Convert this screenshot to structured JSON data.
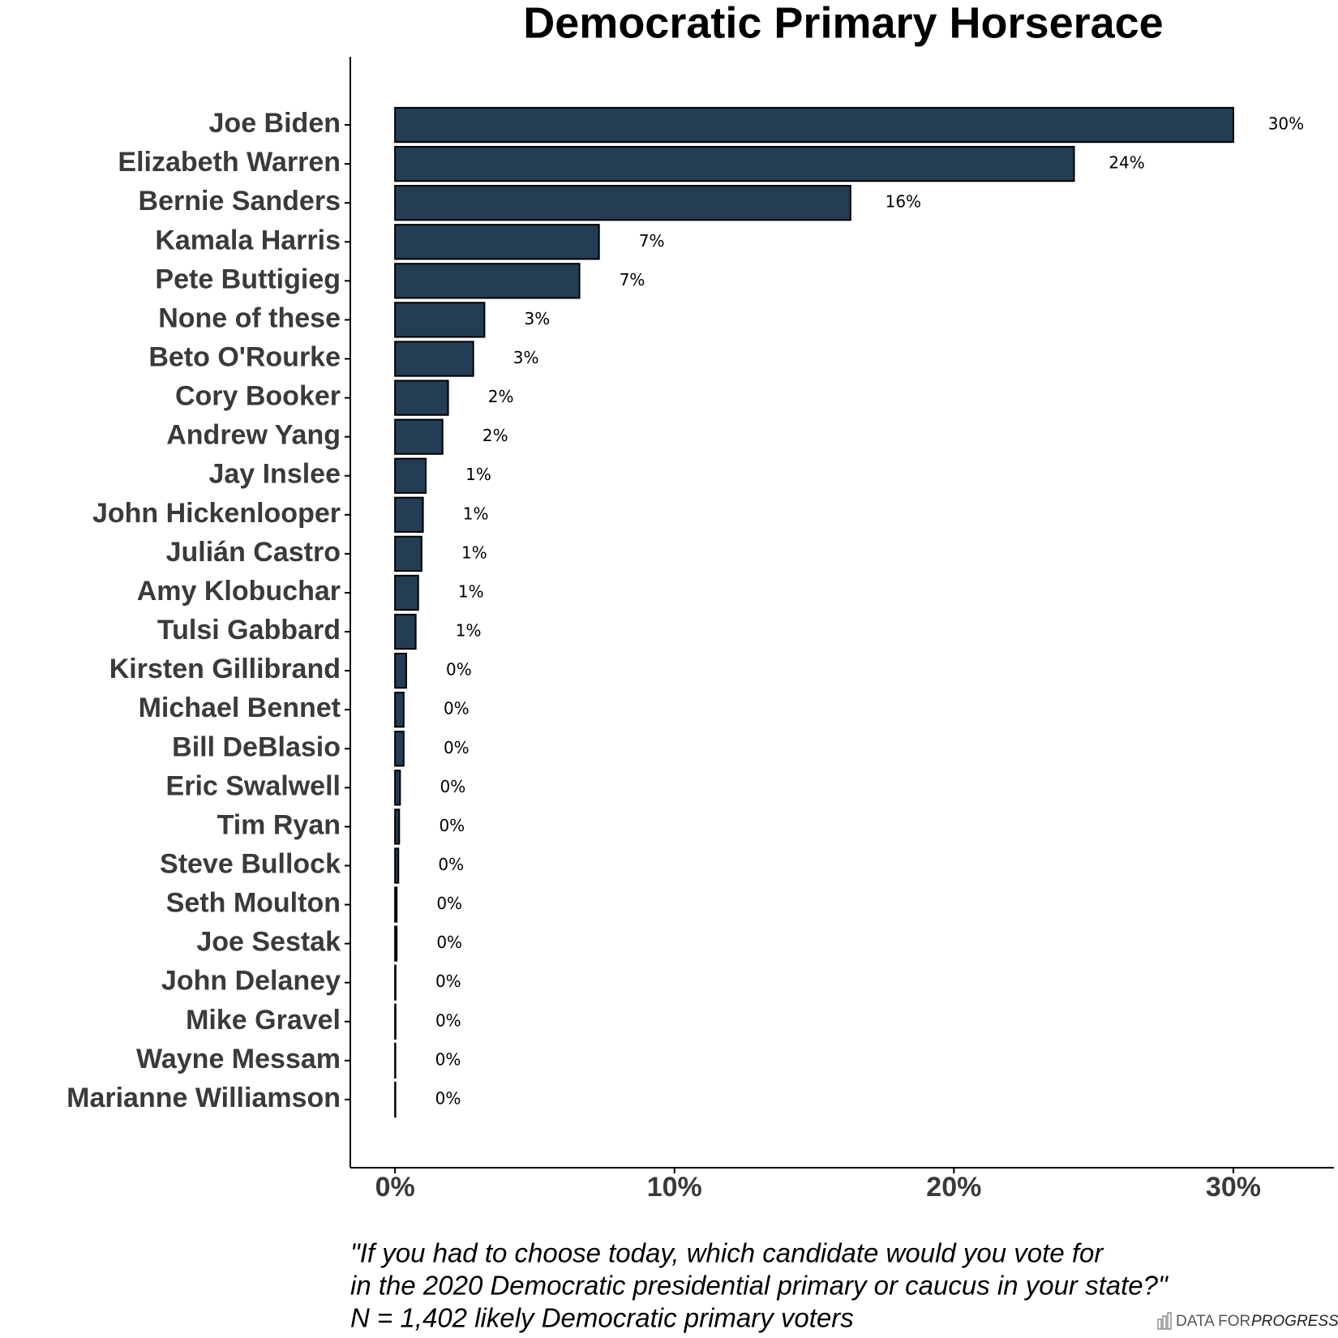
{
  "chart_data": {
    "type": "bar",
    "orientation": "horizontal",
    "title": "Democratic Primary Horserace",
    "categories": [
      "Joe Biden",
      "Elizabeth Warren",
      "Bernie Sanders",
      "Kamala Harris",
      "Pete Buttigieg",
      "None of these",
      "Beto O'Rourke",
      "Cory Booker",
      "Andrew Yang",
      "Jay Inslee",
      "John Hickenlooper",
      "Julián Castro",
      "Amy Klobuchar",
      "Tulsi Gabbard",
      "Kirsten Gillibrand",
      "Michael Bennet",
      "Bill DeBlasio",
      "Eric Swalwell",
      "Tim Ryan",
      "Steve Bullock",
      "Seth Moulton",
      "Joe Sestak",
      "John Delaney",
      "Mike Gravel",
      "Wayne Messam",
      "Marianne Williamson"
    ],
    "values": [
      30.0,
      24.3,
      16.3,
      7.3,
      6.6,
      3.2,
      2.8,
      1.9,
      1.7,
      1.1,
      1.0,
      0.95,
      0.83,
      0.74,
      0.4,
      0.31,
      0.31,
      0.18,
      0.15,
      0.12,
      0.06,
      0.06,
      0.02,
      0.02,
      0.01,
      0.01
    ],
    "value_labels": [
      "30%",
      "24%",
      "16%",
      "7%",
      "7%",
      "3%",
      "3%",
      "2%",
      "2%",
      "1%",
      "1%",
      "1%",
      "1%",
      "1%",
      "0%",
      "0%",
      "0%",
      "0%",
      "0%",
      "0%",
      "0%",
      "0%",
      "0%",
      "0%",
      "0%",
      "0%"
    ],
    "color": "#233d55",
    "xlim": [
      -1.6,
      33.6
    ],
    "xticks": [
      {
        "value": 0,
        "label": "0%"
      },
      {
        "value": 10,
        "label": "10%"
      },
      {
        "value": 20,
        "label": "20%"
      },
      {
        "value": 30,
        "label": "30%"
      }
    ],
    "grid": false,
    "caption": [
      "\"If you had to choose today, which candidate would you vote for",
      "in the 2020 Democratic presidential primary or caucus in your state?\"",
      "N = 1,402 likely Democratic primary voters"
    ],
    "brand": [
      "DATA FOR",
      "PROGRESS"
    ]
  }
}
